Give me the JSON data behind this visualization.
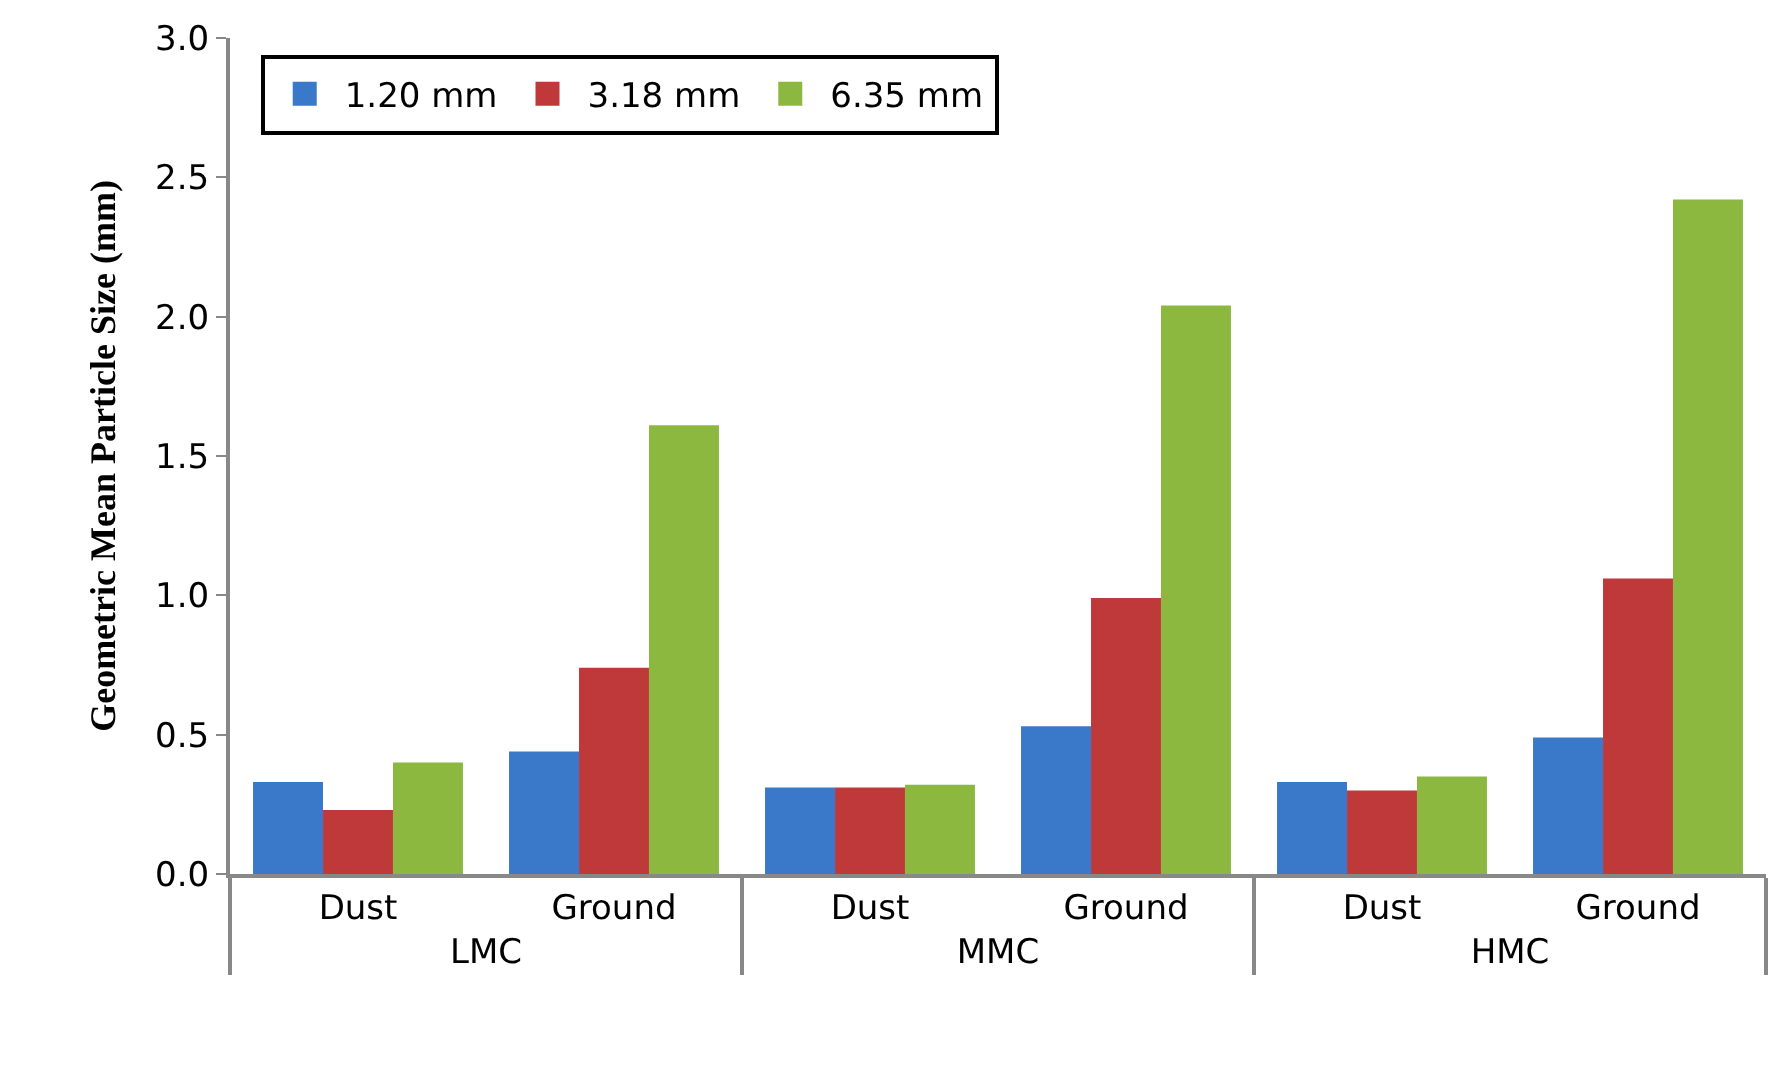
{
  "chart_data": {
    "type": "bar",
    "ylabel": "Geometric Mean Particle Size (mm)",
    "categories": [
      "Dust",
      "Ground",
      "Dust",
      "Ground",
      "Dust",
      "Ground"
    ],
    "annotations": [
      "LMC",
      "MMC",
      "HMC"
    ],
    "series": [
      {
        "name": "1.20 mm",
        "color": "#3a78c9",
        "values": [
          0.33,
          0.44,
          0.31,
          0.53,
          0.33,
          0.49
        ]
      },
      {
        "name": "3.18 mm",
        "color": "#c0393a",
        "values": [
          0.23,
          0.74,
          0.31,
          0.99,
          0.3,
          1.06
        ]
      },
      {
        "name": "6.35 mm",
        "color": "#8db840",
        "values": [
          0.4,
          1.61,
          0.32,
          2.04,
          0.35,
          2.42
        ]
      }
    ],
    "ylim": [
      0,
      3.0
    ],
    "yticks": [
      {
        "value": 0,
        "label": "0.0"
      },
      {
        "value": 0.5,
        "label": "0.5"
      },
      {
        "value": 1,
        "label": "1.0"
      },
      {
        "value": 1.5,
        "label": "1.5"
      },
      {
        "value": 2,
        "label": "2.0"
      },
      {
        "value": 2.5,
        "label": "2.5"
      },
      {
        "value": 3,
        "label": "3.0"
      }
    ],
    "legend": "top left"
  }
}
